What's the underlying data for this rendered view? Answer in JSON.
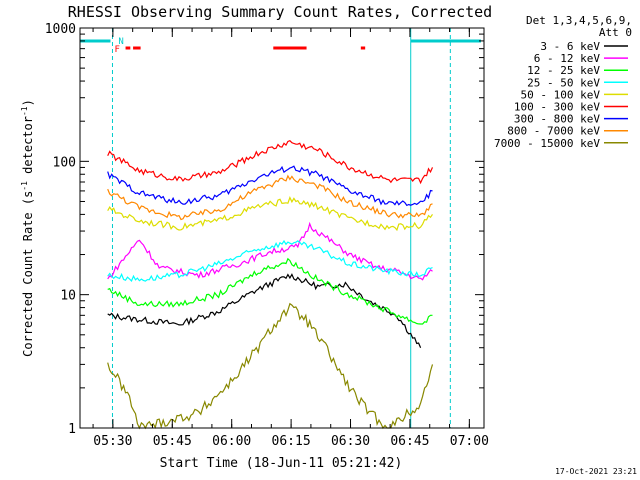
{
  "chart_data": {
    "type": "line",
    "title": "RHESSI Observing Summary Count Rates, Corrected",
    "xlabel": "Start Time (18-Jun-11 05:21:42)",
    "ylabel_parts": [
      "Corrected Count Rate (s",
      "-1",
      " detector",
      "-1",
      ")"
    ],
    "yscale": "log",
    "ylim": [
      1,
      1000
    ],
    "xlim_minutes": [
      0,
      102
    ],
    "x_tick_labels": [
      "05:30",
      "05:45",
      "06:00",
      "06:15",
      "06:30",
      "06:45",
      "07:00"
    ],
    "x_tick_minutes": [
      8.3,
      23.3,
      38.3,
      53.3,
      68.3,
      83.3,
      98.3
    ],
    "y_tick_labels": [
      "1",
      "10",
      "100",
      "1000"
    ],
    "y_tick_values": [
      1,
      10,
      100,
      1000
    ],
    "legend_header": [
      "Det 1,3,4,5,6,9,",
      "Att 0"
    ],
    "legend_position": "right",
    "series": [
      {
        "name": "3 - 6 keV",
        "color": "#000000",
        "points": [
          [
            7,
            7
          ],
          [
            15,
            6.5
          ],
          [
            25,
            6
          ],
          [
            35,
            7.5
          ],
          [
            45,
            11
          ],
          [
            53,
            14
          ],
          [
            60,
            11.5
          ],
          [
            67,
            12
          ],
          [
            73,
            9
          ],
          [
            80,
            7
          ],
          [
            86,
            4
          ]
        ]
      },
      {
        "name": "6 - 12 keV",
        "color": "#ff00ff",
        "points": [
          [
            7,
            13
          ],
          [
            10,
            17
          ],
          [
            15,
            26
          ],
          [
            20,
            16
          ],
          [
            30,
            14
          ],
          [
            40,
            17
          ],
          [
            48,
            21
          ],
          [
            55,
            23
          ],
          [
            58,
            33
          ],
          [
            62,
            27
          ],
          [
            68,
            20
          ],
          [
            75,
            16
          ],
          [
            80,
            15
          ],
          [
            86,
            13
          ],
          [
            89,
            15
          ]
        ]
      },
      {
        "name": "12 - 25 keV",
        "color": "#00ff00",
        "points": [
          [
            7,
            11
          ],
          [
            15,
            8.5
          ],
          [
            25,
            8.5
          ],
          [
            35,
            10
          ],
          [
            45,
            15
          ],
          [
            53,
            18
          ],
          [
            60,
            13
          ],
          [
            68,
            10
          ],
          [
            78,
            7.5
          ],
          [
            86,
            6
          ],
          [
            89,
            7
          ]
        ]
      },
      {
        "name": "25 - 50 keV",
        "color": "#00ffff",
        "points": [
          [
            7,
            14
          ],
          [
            15,
            13
          ],
          [
            25,
            14
          ],
          [
            35,
            17
          ],
          [
            45,
            22
          ],
          [
            53,
            25
          ],
          [
            60,
            22
          ],
          [
            68,
            17
          ],
          [
            78,
            15
          ],
          [
            86,
            14
          ],
          [
            89,
            16
          ]
        ]
      },
      {
        "name": "50 - 100 keV",
        "color": "#dddd00",
        "points": [
          [
            7,
            44
          ],
          [
            15,
            36
          ],
          [
            25,
            32
          ],
          [
            35,
            36
          ],
          [
            45,
            46
          ],
          [
            53,
            51
          ],
          [
            60,
            46
          ],
          [
            68,
            37
          ],
          [
            78,
            32
          ],
          [
            86,
            33
          ],
          [
            89,
            40
          ]
        ]
      },
      {
        "name": "100 - 300 keV",
        "color": "#ff0000",
        "points": [
          [
            7,
            115
          ],
          [
            15,
            85
          ],
          [
            25,
            73
          ],
          [
            35,
            82
          ],
          [
            45,
            115
          ],
          [
            53,
            140
          ],
          [
            60,
            122
          ],
          [
            68,
            90
          ],
          [
            78,
            72
          ],
          [
            86,
            72
          ],
          [
            89,
            90
          ]
        ]
      },
      {
        "name": "300 - 800 keV",
        "color": "#0000ff",
        "points": [
          [
            7,
            80
          ],
          [
            15,
            58
          ],
          [
            25,
            49
          ],
          [
            35,
            55
          ],
          [
            45,
            76
          ],
          [
            53,
            90
          ],
          [
            60,
            80
          ],
          [
            68,
            60
          ],
          [
            78,
            48
          ],
          [
            86,
            48
          ],
          [
            89,
            60
          ]
        ]
      },
      {
        "name": "800 - 7000 keV",
        "color": "#ff8800",
        "points": [
          [
            7,
            60
          ],
          [
            15,
            45
          ],
          [
            25,
            38
          ],
          [
            35,
            43
          ],
          [
            45,
            62
          ],
          [
            53,
            76
          ],
          [
            60,
            66
          ],
          [
            68,
            49
          ],
          [
            78,
            40
          ],
          [
            86,
            39
          ],
          [
            89,
            48
          ]
        ]
      },
      {
        "name": "7000 - 15000 keV",
        "color": "#888800",
        "points": [
          [
            7,
            3
          ],
          [
            12,
            1.8
          ],
          [
            15,
            1
          ],
          [
            30,
            1.3
          ],
          [
            38,
            2.2
          ],
          [
            45,
            4
          ],
          [
            50,
            6.5
          ],
          [
            53,
            8
          ],
          [
            57,
            6.5
          ],
          [
            62,
            4
          ],
          [
            68,
            2
          ],
          [
            73,
            1.3
          ],
          [
            78,
            1
          ],
          [
            86,
            1.5
          ],
          [
            89,
            3
          ]
        ]
      }
    ],
    "flag_labels": [
      {
        "text": "N",
        "color": "#00cccc"
      },
      {
        "text": "F",
        "color": "#ff0000"
      }
    ],
    "footer_date": "17-Oct-2021 23:21"
  }
}
